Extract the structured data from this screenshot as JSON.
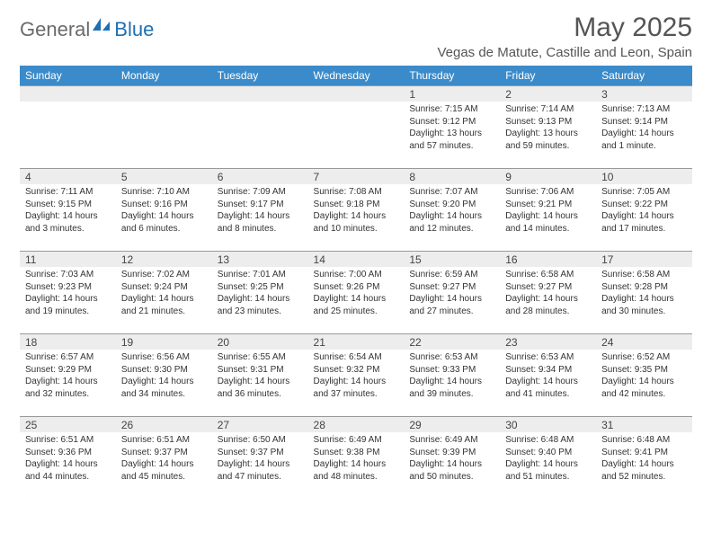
{
  "brand": {
    "part1": "General",
    "part2": "Blue"
  },
  "title": "May 2025",
  "location": "Vegas de Matute, Castille and Leon, Spain",
  "colors": {
    "header_bg": "#3b8bca",
    "header_text": "#ffffff",
    "daynum_bg": "#ededed",
    "border": "#999999",
    "logo_gray": "#6a6a6a",
    "logo_blue": "#1f6fb2",
    "page_bg": "#ffffff",
    "body_text": "#333333"
  },
  "weekdays": [
    "Sunday",
    "Monday",
    "Tuesday",
    "Wednesday",
    "Thursday",
    "Friday",
    "Saturday"
  ],
  "weeks": [
    [
      null,
      null,
      null,
      null,
      {
        "n": "1",
        "sr": "7:15 AM",
        "ss": "9:12 PM",
        "dl": "13 hours and 57 minutes."
      },
      {
        "n": "2",
        "sr": "7:14 AM",
        "ss": "9:13 PM",
        "dl": "13 hours and 59 minutes."
      },
      {
        "n": "3",
        "sr": "7:13 AM",
        "ss": "9:14 PM",
        "dl": "14 hours and 1 minute."
      }
    ],
    [
      {
        "n": "4",
        "sr": "7:11 AM",
        "ss": "9:15 PM",
        "dl": "14 hours and 3 minutes."
      },
      {
        "n": "5",
        "sr": "7:10 AM",
        "ss": "9:16 PM",
        "dl": "14 hours and 6 minutes."
      },
      {
        "n": "6",
        "sr": "7:09 AM",
        "ss": "9:17 PM",
        "dl": "14 hours and 8 minutes."
      },
      {
        "n": "7",
        "sr": "7:08 AM",
        "ss": "9:18 PM",
        "dl": "14 hours and 10 minutes."
      },
      {
        "n": "8",
        "sr": "7:07 AM",
        "ss": "9:20 PM",
        "dl": "14 hours and 12 minutes."
      },
      {
        "n": "9",
        "sr": "7:06 AM",
        "ss": "9:21 PM",
        "dl": "14 hours and 14 minutes."
      },
      {
        "n": "10",
        "sr": "7:05 AM",
        "ss": "9:22 PM",
        "dl": "14 hours and 17 minutes."
      }
    ],
    [
      {
        "n": "11",
        "sr": "7:03 AM",
        "ss": "9:23 PM",
        "dl": "14 hours and 19 minutes."
      },
      {
        "n": "12",
        "sr": "7:02 AM",
        "ss": "9:24 PM",
        "dl": "14 hours and 21 minutes."
      },
      {
        "n": "13",
        "sr": "7:01 AM",
        "ss": "9:25 PM",
        "dl": "14 hours and 23 minutes."
      },
      {
        "n": "14",
        "sr": "7:00 AM",
        "ss": "9:26 PM",
        "dl": "14 hours and 25 minutes."
      },
      {
        "n": "15",
        "sr": "6:59 AM",
        "ss": "9:27 PM",
        "dl": "14 hours and 27 minutes."
      },
      {
        "n": "16",
        "sr": "6:58 AM",
        "ss": "9:27 PM",
        "dl": "14 hours and 28 minutes."
      },
      {
        "n": "17",
        "sr": "6:58 AM",
        "ss": "9:28 PM",
        "dl": "14 hours and 30 minutes."
      }
    ],
    [
      {
        "n": "18",
        "sr": "6:57 AM",
        "ss": "9:29 PM",
        "dl": "14 hours and 32 minutes."
      },
      {
        "n": "19",
        "sr": "6:56 AM",
        "ss": "9:30 PM",
        "dl": "14 hours and 34 minutes."
      },
      {
        "n": "20",
        "sr": "6:55 AM",
        "ss": "9:31 PM",
        "dl": "14 hours and 36 minutes."
      },
      {
        "n": "21",
        "sr": "6:54 AM",
        "ss": "9:32 PM",
        "dl": "14 hours and 37 minutes."
      },
      {
        "n": "22",
        "sr": "6:53 AM",
        "ss": "9:33 PM",
        "dl": "14 hours and 39 minutes."
      },
      {
        "n": "23",
        "sr": "6:53 AM",
        "ss": "9:34 PM",
        "dl": "14 hours and 41 minutes."
      },
      {
        "n": "24",
        "sr": "6:52 AM",
        "ss": "9:35 PM",
        "dl": "14 hours and 42 minutes."
      }
    ],
    [
      {
        "n": "25",
        "sr": "6:51 AM",
        "ss": "9:36 PM",
        "dl": "14 hours and 44 minutes."
      },
      {
        "n": "26",
        "sr": "6:51 AM",
        "ss": "9:37 PM",
        "dl": "14 hours and 45 minutes."
      },
      {
        "n": "27",
        "sr": "6:50 AM",
        "ss": "9:37 PM",
        "dl": "14 hours and 47 minutes."
      },
      {
        "n": "28",
        "sr": "6:49 AM",
        "ss": "9:38 PM",
        "dl": "14 hours and 48 minutes."
      },
      {
        "n": "29",
        "sr": "6:49 AM",
        "ss": "9:39 PM",
        "dl": "14 hours and 50 minutes."
      },
      {
        "n": "30",
        "sr": "6:48 AM",
        "ss": "9:40 PM",
        "dl": "14 hours and 51 minutes."
      },
      {
        "n": "31",
        "sr": "6:48 AM",
        "ss": "9:41 PM",
        "dl": "14 hours and 52 minutes."
      }
    ]
  ],
  "labels": {
    "sunrise": "Sunrise:",
    "sunset": "Sunset:",
    "daylight": "Daylight:"
  }
}
